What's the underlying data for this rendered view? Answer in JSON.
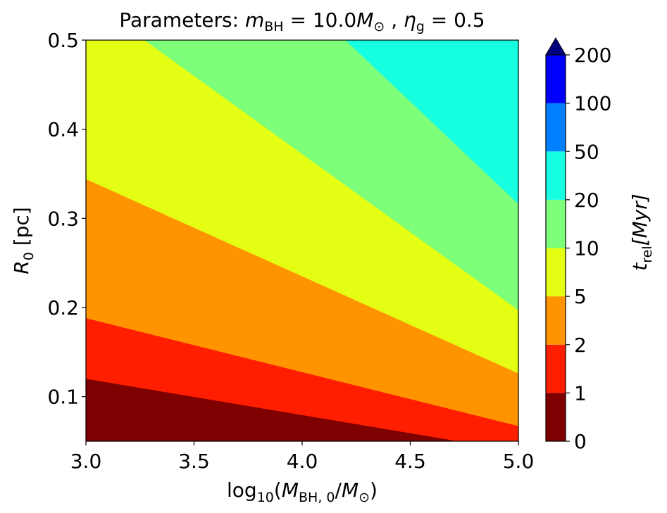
{
  "chart_data": {
    "type": "heatmap",
    "title": {
      "prefix": "Parameters: ",
      "m": "m",
      "m_sub": "BH",
      "eq1": " = 10.0",
      "msun": "M",
      "sun_sub": "⊙",
      "sep": " , ",
      "eta": "η",
      "eta_sub": "g",
      "eq2": " = 0.5"
    },
    "xlabel": {
      "pre": "log",
      "sub10": "10",
      "open": "(",
      "M": "M",
      "M_sub": "BH, 0",
      "slash": "/",
      "Msun": "M",
      "sun_sub": "⊙",
      "close": ")"
    },
    "ylabel": {
      "R": "R",
      "R_sub": "0",
      "unit": " [pc]"
    },
    "xlim": [
      3.0,
      5.0
    ],
    "ylim": [
      0.05,
      0.5
    ],
    "xticks": [
      "3.0",
      "3.5",
      "4.0",
      "4.5",
      "5.0"
    ],
    "yticks": [
      "0.1",
      "0.2",
      "0.3",
      "0.4",
      "0.5"
    ],
    "colorbar": {
      "label": {
        "t": "t",
        "t_sub": "rel",
        "unit": "[Myr]"
      },
      "levels": [
        "0",
        "1",
        "2",
        "5",
        "10",
        "20",
        "50",
        "100",
        "200"
      ],
      "colors": [
        "#7f0000",
        "#ff1e00",
        "#ff9400",
        "#e4ff13",
        "#7dff7a",
        "#16ffe1",
        "#0080ff",
        "#0000ff"
      ],
      "extend_color": "#000080"
    },
    "top_fill_color": "#16ffe1",
    "boundaries": [
      {
        "level": 20,
        "below_color": "#7dff7a",
        "points": [
          [
            4.2,
            0.5
          ],
          [
            5.0,
            0.316
          ]
        ]
      },
      {
        "level": 10,
        "below_color": "#e4ff13",
        "points": [
          [
            3.27,
            0.5
          ],
          [
            5.0,
            0.197
          ]
        ]
      },
      {
        "level": 5,
        "below_color": "#ff9400",
        "points": [
          [
            3.0,
            0.344
          ],
          [
            5.0,
            0.126
          ]
        ]
      },
      {
        "level": 2,
        "below_color": "#ff1e00",
        "points": [
          [
            3.0,
            0.188
          ],
          [
            5.0,
            0.067
          ]
        ]
      },
      {
        "level": 1,
        "below_color": "#7f0000",
        "points": [
          [
            3.0,
            0.12
          ],
          [
            4.72,
            0.05
          ]
        ]
      }
    ]
  }
}
